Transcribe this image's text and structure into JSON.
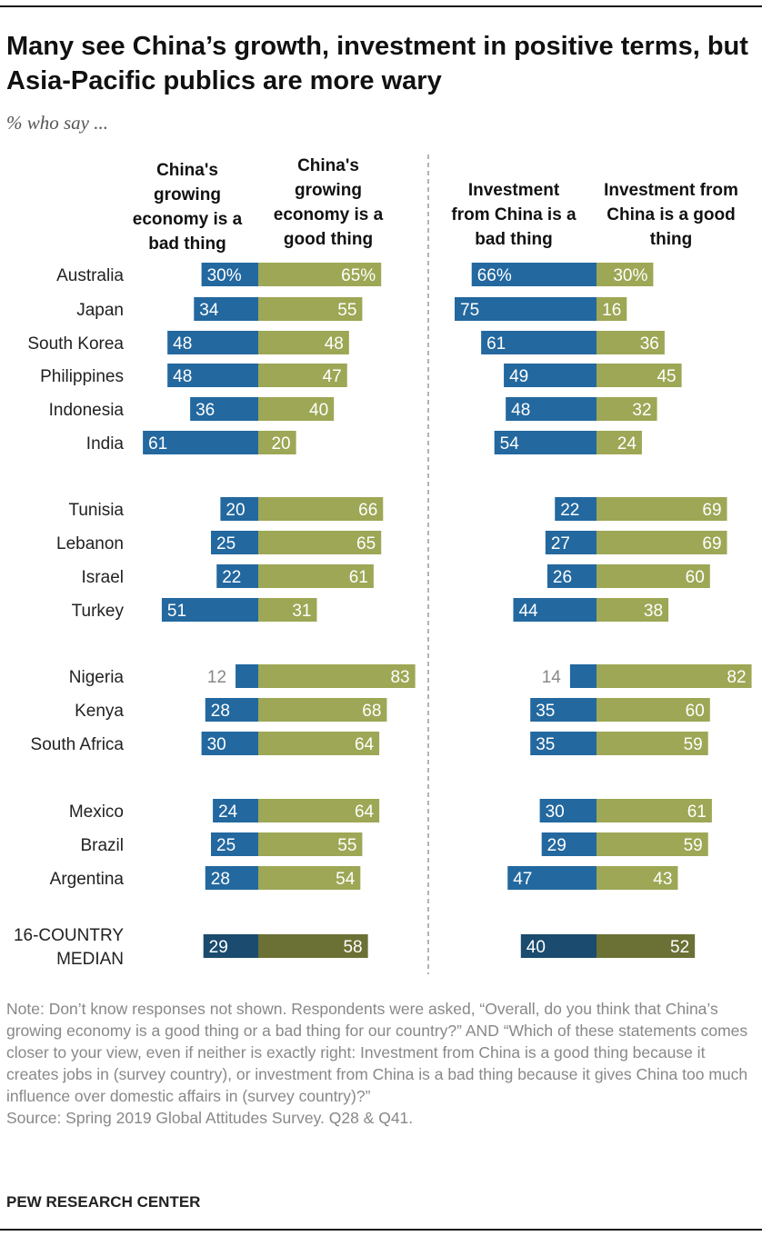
{
  "title": "Many see China’s growth, investment in positive terms, but Asia-Pacific publics are more wary",
  "subtitle": "% who say ...",
  "chart_data": {
    "type": "bar",
    "orientation": "horizontal-diverging",
    "title": "Many see China’s growth, investment in positive terms, but Asia-Pacific publics are more wary",
    "panels": [
      {
        "id": "economy",
        "bad_header": "China's growing economy is a bad thing",
        "good_header": "China's growing economy is a good thing"
      },
      {
        "id": "investment",
        "bad_header": "Investment from China is a bad thing",
        "good_header": "Investment from China is a good thing"
      }
    ],
    "rows": [
      {
        "country": "Australia",
        "econ_bad": 30,
        "econ_good": 65,
        "inv_bad": 66,
        "inv_good": 30,
        "econ_bad_label": "30%",
        "econ_good_label": "65%",
        "inv_bad_label": "66%",
        "inv_good_label": "30%"
      },
      {
        "country": "Japan",
        "econ_bad": 34,
        "econ_good": 55,
        "inv_bad": 75,
        "inv_good": 16
      },
      {
        "country": "South Korea",
        "econ_bad": 48,
        "econ_good": 48,
        "inv_bad": 61,
        "inv_good": 36
      },
      {
        "country": "Philippines",
        "econ_bad": 48,
        "econ_good": 47,
        "inv_bad": 49,
        "inv_good": 45
      },
      {
        "country": "Indonesia",
        "econ_bad": 36,
        "econ_good": 40,
        "inv_bad": 48,
        "inv_good": 32
      },
      {
        "country": "India",
        "econ_bad": 61,
        "econ_good": 20,
        "inv_bad": 54,
        "inv_good": 24
      },
      {
        "country": "Tunisia",
        "econ_bad": 20,
        "econ_good": 66,
        "inv_bad": 22,
        "inv_good": 69
      },
      {
        "country": "Lebanon",
        "econ_bad": 25,
        "econ_good": 65,
        "inv_bad": 27,
        "inv_good": 69
      },
      {
        "country": "Israel",
        "econ_bad": 22,
        "econ_good": 61,
        "inv_bad": 26,
        "inv_good": 60
      },
      {
        "country": "Turkey",
        "econ_bad": 51,
        "econ_good": 31,
        "inv_bad": 44,
        "inv_good": 38
      },
      {
        "country": "Nigeria",
        "econ_bad": 12,
        "econ_good": 83,
        "inv_bad": 14,
        "inv_good": 82
      },
      {
        "country": "Kenya",
        "econ_bad": 28,
        "econ_good": 68,
        "inv_bad": 35,
        "inv_good": 60
      },
      {
        "country": "South Africa",
        "econ_bad": 30,
        "econ_good": 64,
        "inv_bad": 35,
        "inv_good": 59
      },
      {
        "country": "Mexico",
        "econ_bad": 24,
        "econ_good": 64,
        "inv_bad": 30,
        "inv_good": 61
      },
      {
        "country": "Brazil",
        "econ_bad": 25,
        "econ_good": 55,
        "inv_bad": 29,
        "inv_good": 59
      },
      {
        "country": "Argentina",
        "econ_bad": 28,
        "econ_good": 54,
        "inv_bad": 47,
        "inv_good": 43
      },
      {
        "country": "16-COUNTRY MEDIAN",
        "country_lines": [
          "16-COUNTRY",
          "MEDIAN"
        ],
        "median": true,
        "econ_bad": 29,
        "econ_good": 58,
        "inv_bad": 40,
        "inv_good": 52
      }
    ],
    "colors": {
      "bad": "#23689f",
      "good": "#9da755",
      "bad_median": "#1b4b6e",
      "good_median": "#6b7035",
      "outside_label": "#888888"
    }
  },
  "note": "Note: Don’t know responses not shown. Respondents were asked, “Overall, do you think that China’s growing economy is a good thing or a bad thing for our country?” AND “Which of these statements comes closer to your view, even if neither is exactly right: Investment from China is a good thing because it creates jobs in (survey country), or investment from China is a bad thing because it gives China too much influence over domestic affairs in (survey country)?”",
  "source": "Source: Spring 2019 Global Attitudes Survey. Q28 & Q41.",
  "brand": "PEW RESEARCH CENTER"
}
